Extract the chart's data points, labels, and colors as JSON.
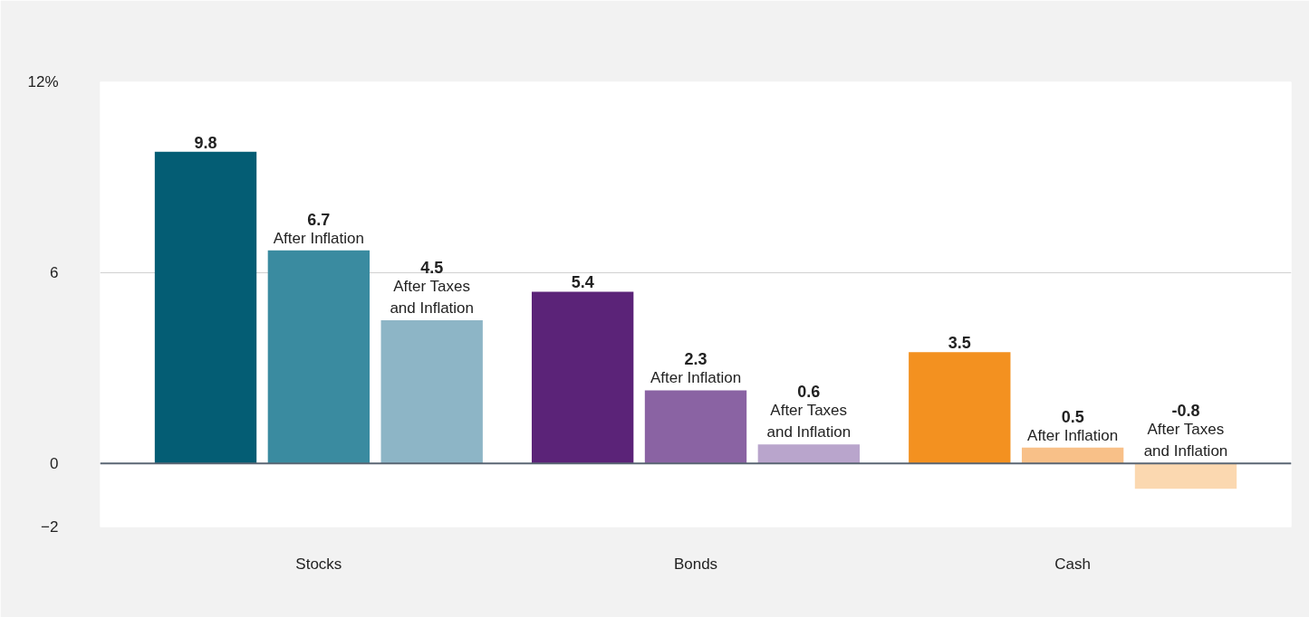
{
  "chart_data": {
    "type": "bar",
    "categories": [
      "Stocks",
      "Bonds",
      "Cash"
    ],
    "series": [
      {
        "colors": [
          "#045d74",
          "#5b2378",
          "#f39120"
        ],
        "values": [
          9.8,
          5.4,
          3.5
        ]
      },
      {
        "name": "After Inflation",
        "colors": [
          "#3a8ba0",
          "#8a63a3",
          "#f8c088"
        ],
        "values": [
          6.7,
          2.3,
          0.5
        ]
      },
      {
        "name": "After Taxes and Inflation",
        "colors": [
          "#8db5c6",
          "#b9a5cc",
          "#fbd8b0"
        ],
        "values": [
          4.5,
          0.6,
          -0.8
        ]
      }
    ],
    "ylim": [
      -2,
      12
    ],
    "yticks": [
      -2,
      0,
      6,
      {
        "value": 12,
        "label": "12%"
      }
    ],
    "grid": "y",
    "data_labels": true,
    "ref_lines": [
      {
        "axis": "y",
        "value": 0,
        "color": "#5a6673"
      }
    ]
  }
}
